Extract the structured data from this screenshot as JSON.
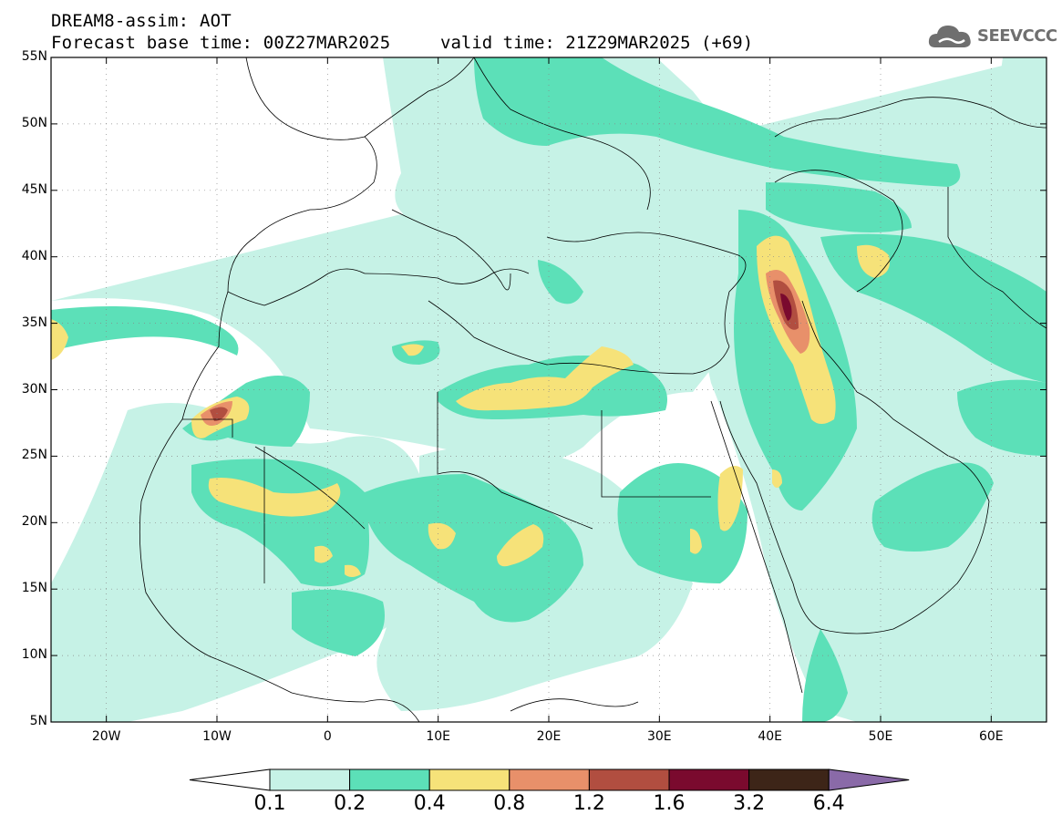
{
  "header": {
    "line1": "DREAM8-assim: AOT",
    "line2": "Forecast base time: 00Z27MAR2025",
    "valid": "valid time: 21Z29MAR2025 (+69)"
  },
  "logo": {
    "text": "SEEVCCC",
    "icon": "cloud-icon"
  },
  "map": {
    "lat_labels": [
      "55N",
      "50N",
      "45N",
      "40N",
      "35N",
      "30N",
      "25N",
      "20N",
      "15N",
      "10N",
      "5N"
    ],
    "lon_labels": [
      "20W",
      "10W",
      "0",
      "10E",
      "20E",
      "30E",
      "40E",
      "50E",
      "60E"
    ],
    "lat_values": [
      55,
      50,
      45,
      40,
      35,
      30,
      25,
      20,
      15,
      10,
      5
    ],
    "lon_values": [
      -20,
      -10,
      0,
      10,
      20,
      30,
      40,
      50,
      60
    ],
    "lon_range": [
      -25,
      65
    ],
    "lat_range": [
      5,
      55
    ],
    "grid": "dotted"
  },
  "colorbar": {
    "labels": [
      "0.1",
      "0.2",
      "0.4",
      "0.8",
      "1.2",
      "1.6",
      "3.2",
      "6.4"
    ],
    "colors": [
      "#ffffff",
      "#c6f2e6",
      "#5ce0b8",
      "#f6e279",
      "#e8906a",
      "#b14e40",
      "#7a0a2e",
      "#3d2518",
      "#8a6aa8"
    ]
  }
}
